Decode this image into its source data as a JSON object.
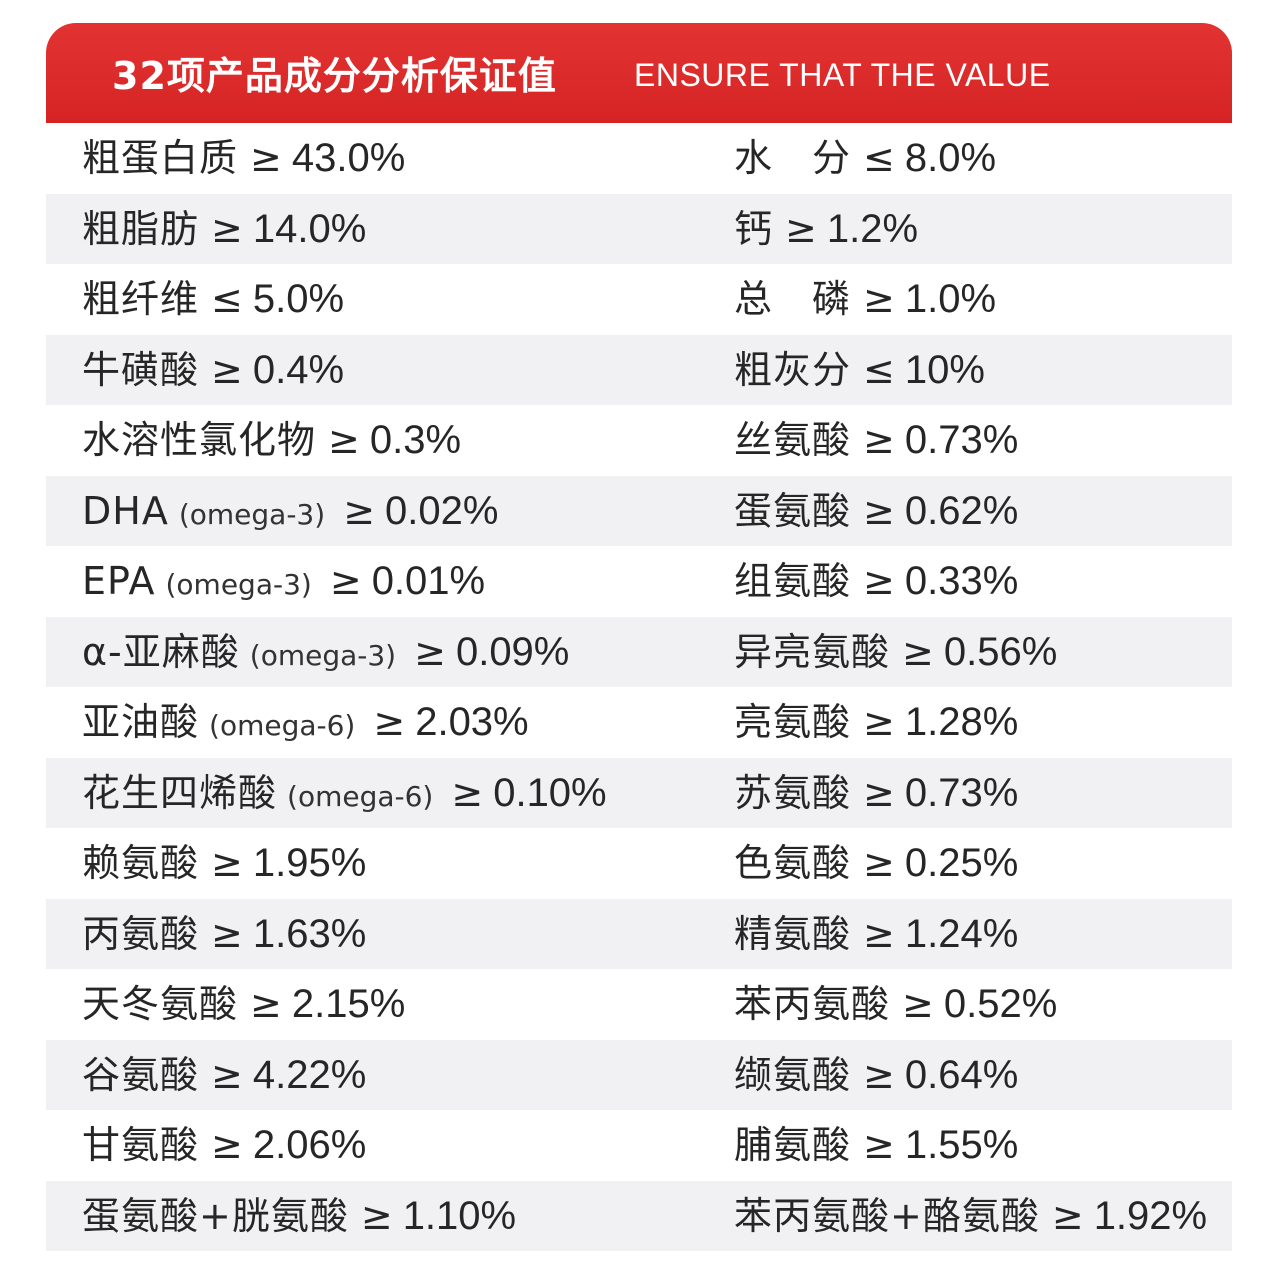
{
  "header": {
    "title_cn": "32项产品成分分析保证值",
    "title_en": "ENSURE THAT THE VALUE"
  },
  "colors": {
    "header_red": "#d62424",
    "row_shade": "#f1f1f3",
    "text": "#262626"
  },
  "rows": [
    {
      "left": {
        "name": "粗蛋白质",
        "note": "",
        "op": "≥",
        "value": "43.0%"
      },
      "right": {
        "name": "水　分",
        "note": "",
        "op": "≤",
        "value": "8.0%"
      }
    },
    {
      "left": {
        "name": "粗脂肪",
        "note": "",
        "op": "≥",
        "value": "14.0%"
      },
      "right": {
        "name": "钙",
        "note": "",
        "op": "≥",
        "value": "1.2%"
      }
    },
    {
      "left": {
        "name": "粗纤维",
        "note": "",
        "op": "≤",
        "value": "5.0%"
      },
      "right": {
        "name": "总　磷",
        "note": "",
        "op": "≥",
        "value": "1.0%"
      }
    },
    {
      "left": {
        "name": "牛磺酸",
        "note": "",
        "op": "≥",
        "value": "0.4%"
      },
      "right": {
        "name": "粗灰分",
        "note": "",
        "op": "≤",
        "value": "10%"
      }
    },
    {
      "left": {
        "name": "水溶性氯化物",
        "note": "",
        "op": "≥",
        "value": "0.3%"
      },
      "right": {
        "name": "丝氨酸",
        "note": "",
        "op": "≥",
        "value": "0.73%"
      }
    },
    {
      "left": {
        "name": "DHA",
        "note": "(omega-3)",
        "op": "≥",
        "value": "0.02%"
      },
      "right": {
        "name": "蛋氨酸",
        "note": "",
        "op": "≥",
        "value": "0.62%"
      }
    },
    {
      "left": {
        "name": "EPA",
        "note": "(omega-3)",
        "op": "≥",
        "value": "0.01%"
      },
      "right": {
        "name": "组氨酸",
        "note": "",
        "op": "≥",
        "value": "0.33%"
      }
    },
    {
      "left": {
        "name": "α-亚麻酸",
        "note": "(omega-3)",
        "op": "≥",
        "value": "0.09%"
      },
      "right": {
        "name": "异亮氨酸",
        "note": "",
        "op": "≥",
        "value": "0.56%"
      }
    },
    {
      "left": {
        "name": "亚油酸",
        "note": "(omega-6)",
        "op": "≥",
        "value": "2.03%"
      },
      "right": {
        "name": "亮氨酸",
        "note": "",
        "op": "≥",
        "value": "1.28%"
      }
    },
    {
      "left": {
        "name": "花生四烯酸",
        "note": "(omega-6)",
        "op": "≥",
        "value": "0.10%"
      },
      "right": {
        "name": "苏氨酸",
        "note": "",
        "op": "≥",
        "value": "0.73%"
      }
    },
    {
      "left": {
        "name": "赖氨酸",
        "note": "",
        "op": "≥",
        "value": "1.95%"
      },
      "right": {
        "name": "色氨酸",
        "note": "",
        "op": "≥",
        "value": "0.25%"
      }
    },
    {
      "left": {
        "name": "丙氨酸",
        "note": "",
        "op": "≥",
        "value": "1.63%"
      },
      "right": {
        "name": "精氨酸",
        "note": "",
        "op": "≥",
        "value": "1.24%"
      }
    },
    {
      "left": {
        "name": "天冬氨酸",
        "note": "",
        "op": "≥",
        "value": "2.15%"
      },
      "right": {
        "name": "苯丙氨酸",
        "note": "",
        "op": "≥",
        "value": "0.52%"
      }
    },
    {
      "left": {
        "name": "谷氨酸",
        "note": "",
        "op": "≥",
        "value": "4.22%"
      },
      "right": {
        "name": "缬氨酸",
        "note": "",
        "op": "≥",
        "value": "0.64%"
      }
    },
    {
      "left": {
        "name": "甘氨酸",
        "note": "",
        "op": "≥",
        "value": "2.06%"
      },
      "right": {
        "name": "脯氨酸",
        "note": "",
        "op": "≥",
        "value": "1.55%"
      }
    },
    {
      "left": {
        "name": "蛋氨酸+胱氨酸",
        "note": "",
        "op": "≥",
        "value": "1.10%"
      },
      "right": {
        "name": "苯丙氨酸+酪氨酸",
        "note": "",
        "op": "≥",
        "value": "1.92%"
      }
    }
  ]
}
